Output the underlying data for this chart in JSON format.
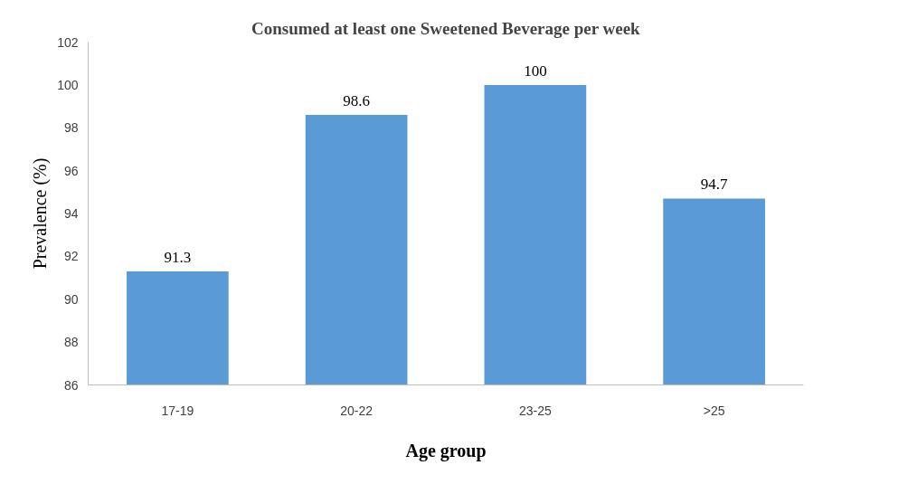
{
  "chart_data": {
    "type": "bar",
    "title": "Consumed at least one Sweetened Beverage per week",
    "xlabel": "Age group",
    "ylabel": "Prevalence (%)",
    "categories": [
      "17-19",
      "20-22",
      "23-25",
      ">25"
    ],
    "values": [
      91.3,
      98.6,
      100,
      94.7
    ],
    "color": "#5b9bd5",
    "ylim": [
      86,
      102
    ],
    "yticks": [
      86,
      88,
      90,
      92,
      94,
      96,
      98,
      100,
      102
    ],
    "data_labels": true,
    "grid": false
  }
}
